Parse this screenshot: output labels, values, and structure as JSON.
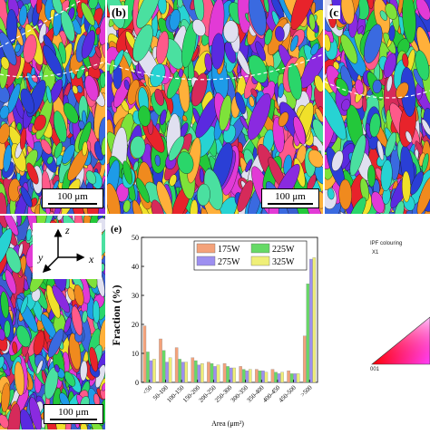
{
  "panels": {
    "a": {
      "label": "",
      "scale": "100 μm"
    },
    "b": {
      "label": "(b)",
      "scale": "100 μm"
    },
    "c": {
      "label": "(c",
      "scale": ""
    },
    "d": {
      "label": "",
      "scale": "100 μm"
    }
  },
  "axes_inset": {
    "z": "z",
    "y": "y",
    "x": "x"
  },
  "ipf": {
    "title": "IPF colouring",
    "subtitle": "X1",
    "corner_label": "001"
  },
  "chart_data": {
    "type": "bar",
    "panel_label": "(e)",
    "categories": [
      "<50",
      "50-100",
      "100-150",
      "150-200",
      "200-250",
      "250-300",
      "300-350",
      "350-400",
      "400-450",
      "450-500",
      ">500"
    ],
    "series": [
      {
        "name": "175W",
        "values": [
          19.5,
          15,
          12,
          8.5,
          7,
          6.5,
          5.5,
          4.5,
          4.5,
          4,
          16
        ]
      },
      {
        "name": "225W",
        "values": [
          10.5,
          11,
          8,
          7.5,
          6.5,
          5.5,
          4.5,
          4,
          3.5,
          3,
          34
        ]
      },
      {
        "name": "275W",
        "values": [
          7.5,
          7,
          7,
          6,
          5.5,
          5,
          4,
          4,
          3,
          3,
          42.5
        ]
      },
      {
        "name": "325W",
        "values": [
          8,
          8.5,
          7,
          6.5,
          6,
          5,
          4.5,
          3.5,
          3.5,
          3,
          43
        ]
      }
    ],
    "xlabel": "Area (μm²)",
    "ylabel": "Fraction (%)",
    "ylim": [
      0,
      50
    ],
    "yticks": [
      "0",
      "10",
      "20",
      "30",
      "40",
      "50"
    ],
    "colors": [
      "#f4a27a",
      "#66d966",
      "#9d8ff0",
      "#efef78"
    ]
  }
}
